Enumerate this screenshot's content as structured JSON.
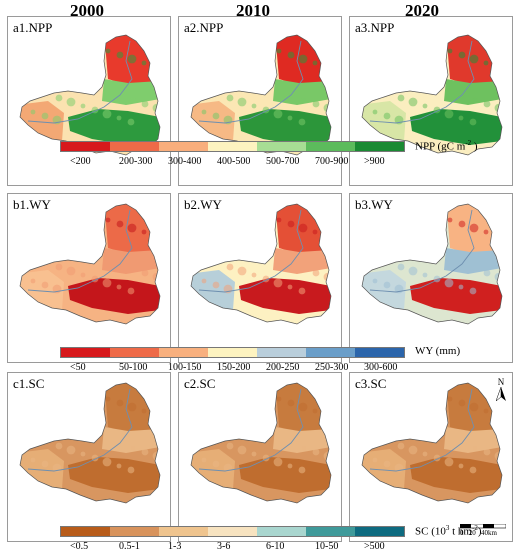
{
  "years": [
    "2000",
    "2010",
    "2020"
  ],
  "rows": [
    {
      "id": "npp",
      "panels": [
        "a1.NPP",
        "a2.NPP",
        "a3.NPP"
      ],
      "legend": {
        "classes": [
          "<200",
          "200-300",
          "300-400",
          "400-500",
          "500-700",
          "700-900",
          ">900"
        ],
        "colors": [
          "#d7191c",
          "#ee6a48",
          "#f9ae7c",
          "#fdf3c0",
          "#a7dd94",
          "#5cbb5c",
          "#1a8a33"
        ],
        "unit_main": "NPP (gC m",
        "unit_sup": "-2",
        "unit_end": " )"
      }
    },
    {
      "id": "wy",
      "panels": [
        "b1.WY",
        "b2.WY",
        "b3.WY"
      ],
      "legend": {
        "classes": [
          "<50",
          "50-100",
          "100-150",
          "150-200",
          "200-250",
          "250-300",
          "300-600"
        ],
        "colors": [
          "#d7191c",
          "#ee6a48",
          "#f8b07e",
          "#fdf3c0",
          "#b9cedb",
          "#6a9ec9",
          "#2b65ab"
        ],
        "unit_main": "WY (mm)",
        "unit_sup": "",
        "unit_end": ""
      }
    },
    {
      "id": "sc",
      "panels": [
        "c1.SC",
        "c2.SC",
        "c3.SC"
      ],
      "legend": {
        "classes": [
          "<0.5",
          "0.5-1",
          "1-3",
          "3-6",
          "6-10",
          "10-50",
          ">500"
        ],
        "colors": [
          "#b85c1a",
          "#d8935c",
          "#efc48e",
          "#f7e3c0",
          "#a9d6cf",
          "#3f9a9a",
          "#0e6b80"
        ],
        "unit_main": "SC (10",
        "unit_sup": "3",
        "unit_end": " t hm",
        "unit_sup2": "-2",
        "unit_end2": ")"
      }
    }
  ],
  "map_colors": {
    "npp": [
      {
        "base": "#fbe2b0",
        "north": "#e83a2c",
        "band": "#7fcd6d",
        "south": "#2d9a3e",
        "west": "#f3a874"
      },
      {
        "base": "#fbe7b4",
        "north": "#df2a22",
        "band": "#79c867",
        "south": "#2c963a",
        "west": "#f6b985"
      },
      {
        "base": "#fbeec0",
        "north": "#e0392c",
        "band": "#6ec15f",
        "south": "#22913a",
        "west": "#d8e6a6"
      }
    ],
    "wy": [
      {
        "base": "#f6b383",
        "north": "#ec6a48",
        "band": "#f09a72",
        "south": "#c4161b",
        "west": "#f8c090"
      },
      {
        "base": "#fdf1c2",
        "north": "#e45036",
        "band": "#f2a27a",
        "south": "#c81a1e",
        "west": "#b7cfd9"
      },
      {
        "base": "#dde6d0",
        "north": "#f8b383",
        "band": "#9fc0d3",
        "south": "#d0201f",
        "west": "#c4d8de"
      }
    ],
    "sc": [
      {
        "base": "#d89660",
        "north": "#c77b3e",
        "band": "#e9b784",
        "south": "#bf6d2f",
        "west": "#e6ae76"
      },
      {
        "base": "#d89660",
        "north": "#c77b3e",
        "band": "#e9b784",
        "south": "#bf6d2f",
        "west": "#e6ae76"
      },
      {
        "base": "#d89660",
        "north": "#c77b3e",
        "band": "#e9b784",
        "south": "#bf6d2f",
        "west": "#e6ae76"
      }
    ]
  },
  "north_arrow": "N",
  "scale_bar": "0   20   40km"
}
